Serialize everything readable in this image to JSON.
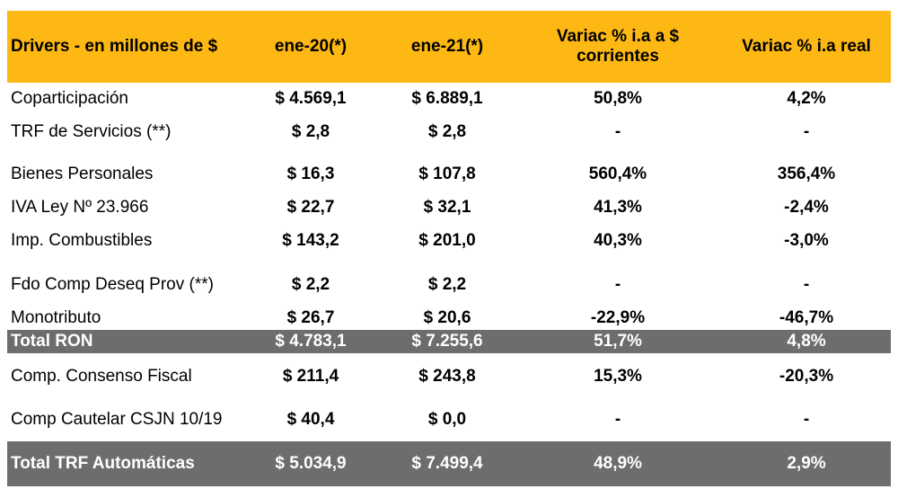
{
  "header": {
    "col0": "Drivers - en millones de $",
    "col1": "ene-20(*)",
    "col2": "ene-21(*)",
    "col3": "Variac % i.a a $ corrientes",
    "col4": "Variac % i.a real"
  },
  "rows": [
    {
      "label": "Coparticipación",
      "v1": "$ 4.569,1",
      "v2": "$ 6.889,1",
      "v3": "50,8%",
      "v4": "4,2%"
    },
    {
      "label": "TRF de Servicios (**)",
      "v1": "$ 2,8",
      "v2": "$ 2,8",
      "v3": "-",
      "v4": "-"
    },
    {
      "label": "Bienes Personales",
      "v1": "$ 16,3",
      "v2": "$ 107,8",
      "v3": "560,4%",
      "v4": "356,4%"
    },
    {
      "label": "IVA Ley Nº 23.966",
      "v1": "$ 22,7",
      "v2": "$ 32,1",
      "v3": "41,3%",
      "v4": "-2,4%"
    },
    {
      "label": "Imp. Combustibles",
      "v1": "$ 143,2",
      "v2": "$ 201,0",
      "v3": "40,3%",
      "v4": "-3,0%"
    },
    {
      "label": "Fdo Comp Deseq Prov (**)",
      "v1": "$ 2,2",
      "v2": "$ 2,2",
      "v3": "-",
      "v4": "-"
    },
    {
      "label": "Monotributo",
      "v1": "$ 26,7",
      "v2": "$ 20,6",
      "v3": "-22,9%",
      "v4": "-46,7%"
    },
    {
      "label": "Total RON",
      "v1": "$ 4.783,1",
      "v2": "$ 7.255,6",
      "v3": "51,7%",
      "v4": "4,8%"
    },
    {
      "label": "Comp. Consenso Fiscal",
      "v1": "$ 211,4",
      "v2": "$ 243,8",
      "v3": "15,3%",
      "v4": "-20,3%"
    },
    {
      "label": "Comp Cautelar CSJN 10/19",
      "v1": "$ 40,4",
      "v2": "$ 0,0",
      "v3": "-",
      "v4": "-"
    },
    {
      "label": "Total TRF Automáticas",
      "v1": "$ 5.034,9",
      "v2": "$ 7.499,4",
      "v3": "48,9%",
      "v4": "2,9%"
    }
  ]
}
